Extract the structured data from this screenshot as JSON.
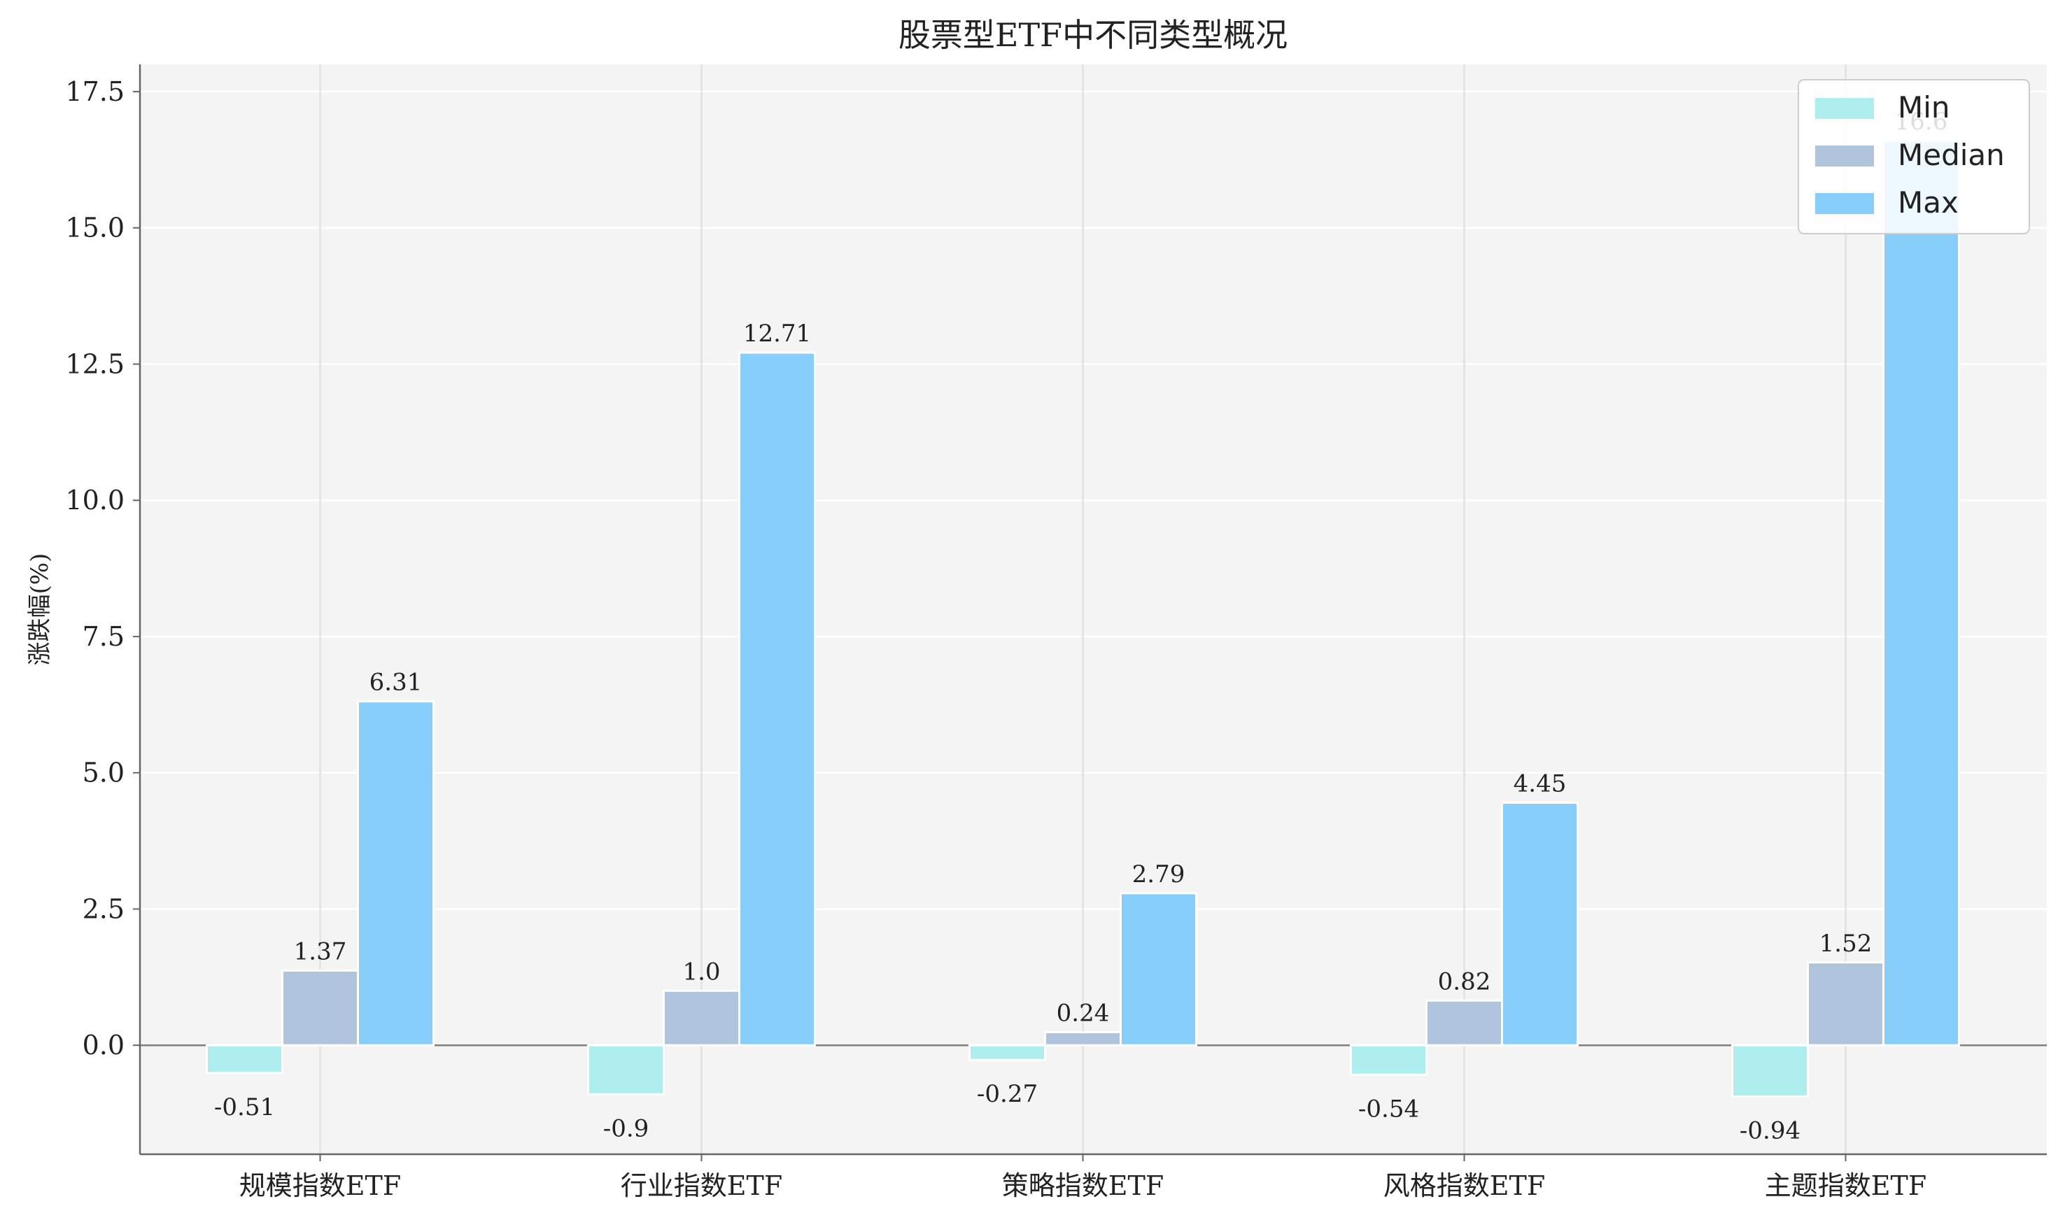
{
  "chart_data": {
    "type": "bar",
    "title": "股票型ETF中不同类型概况",
    "ylabel": "涨跌幅(%)",
    "xlabel": "",
    "categories": [
      "规模指数ETF",
      "行业指数ETF",
      "策略指数ETF",
      "风格指数ETF",
      "主题指数ETF"
    ],
    "series": [
      {
        "name": "Min",
        "values": [
          -0.51,
          -0.9,
          -0.27,
          -0.54,
          -0.94
        ],
        "color": "#AFEEEE"
      },
      {
        "name": "Median",
        "values": [
          1.37,
          1.0,
          0.24,
          0.82,
          1.52
        ],
        "color": "#B0C4DE"
      },
      {
        "name": "Max",
        "values": [
          6.31,
          12.71,
          2.79,
          4.45,
          16.6
        ],
        "color": "#87CEFA"
      }
    ],
    "data_labels": [
      [
        "-0.51",
        "1.37",
        "6.31"
      ],
      [
        "-0.9",
        "1.0",
        "12.71"
      ],
      [
        "-0.27",
        "0.24",
        "2.79"
      ],
      [
        "-0.54",
        "0.82",
        "4.45"
      ],
      [
        "-0.94",
        "1.52",
        "16.6"
      ]
    ],
    "yticks": [
      "0.0",
      "2.5",
      "5.0",
      "7.5",
      "10.0",
      "12.5",
      "15.0",
      "17.5"
    ],
    "ylim": [
      -2.0,
      18.0
    ],
    "grid": true,
    "legend_position": "top-right",
    "background_color": "#F4F4F4"
  }
}
